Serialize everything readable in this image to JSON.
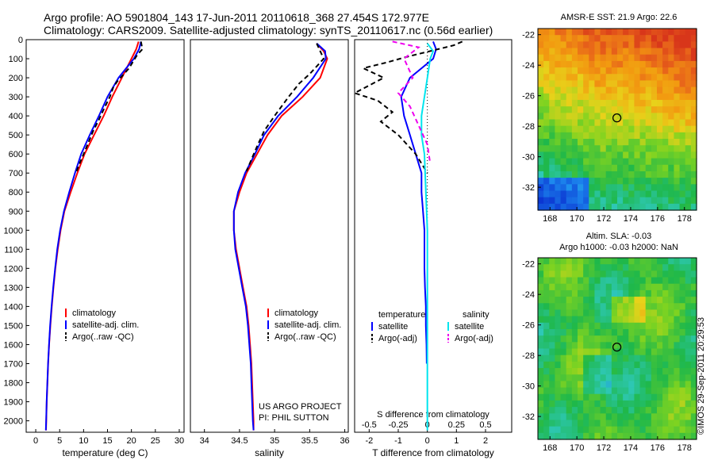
{
  "header": {
    "line1": "Argo profile: AO 5901804_143 17-Jun-2011 20110618_368 27.454S 172.977E",
    "line2": "Climatology: CARS2009. Satellite-adjusted climatology: synTS_20110617.nc (0.56d earlier)"
  },
  "colors": {
    "climatology": "#ff0000",
    "satellite": "#0000ff",
    "argo": "#000000",
    "sal_satellite": "#00e5ee",
    "sal_argo": "#ee00ee"
  },
  "chart_data": [
    {
      "type": "line",
      "id": "temperature",
      "xlabel": "temperature (deg C)",
      "ylabel": "",
      "xlim": [
        -2,
        31
      ],
      "ylim": [
        2060,
        0
      ],
      "xticks": [
        0,
        5,
        10,
        15,
        20,
        25,
        30
      ],
      "yticks": [
        0,
        100,
        200,
        300,
        400,
        500,
        600,
        700,
        800,
        900,
        1000,
        1100,
        1200,
        1300,
        1400,
        1500,
        1600,
        1700,
        1800,
        1900,
        2000
      ],
      "legend": [
        "climatology",
        "satellite-adj. clim.",
        "Argo(..raw -QC)"
      ],
      "series": [
        {
          "name": "climatology",
          "role": "climatology",
          "points": [
            [
              21.5,
              10
            ],
            [
              21,
              50
            ],
            [
              20,
              100
            ],
            [
              18,
              200
            ],
            [
              16,
              300
            ],
            [
              14.2,
              400
            ],
            [
              12.2,
              500
            ],
            [
              10.2,
              600
            ],
            [
              8.7,
              700
            ],
            [
              7.3,
              800
            ],
            [
              6,
              900
            ],
            [
              5.2,
              1000
            ],
            [
              4.6,
              1100
            ],
            [
              4.1,
              1200
            ],
            [
              3.7,
              1300
            ],
            [
              3.35,
              1400
            ],
            [
              3.05,
              1500
            ],
            [
              2.8,
              1600
            ],
            [
              2.6,
              1700
            ],
            [
              2.45,
              1800
            ],
            [
              2.3,
              1900
            ],
            [
              2.2,
              2000
            ],
            [
              2.15,
              2050
            ]
          ]
        },
        {
          "name": "satellite-adj. clim.",
          "role": "satellite",
          "points": [
            [
              22,
              10
            ],
            [
              21.6,
              50
            ],
            [
              20.5,
              100
            ],
            [
              17.3,
              200
            ],
            [
              15,
              300
            ],
            [
              13.2,
              400
            ],
            [
              11.3,
              500
            ],
            [
              9.5,
              600
            ],
            [
              8.2,
              700
            ],
            [
              7,
              800
            ],
            [
              5.9,
              900
            ],
            [
              5.1,
              1000
            ],
            [
              4.5,
              1100
            ],
            [
              4.05,
              1200
            ],
            [
              3.65,
              1300
            ],
            [
              3.3,
              1400
            ],
            [
              3,
              1500
            ],
            [
              2.78,
              1600
            ],
            [
              2.58,
              1700
            ],
            [
              2.43,
              1800
            ],
            [
              2.28,
              1900
            ],
            [
              2.18,
              2000
            ],
            [
              2.12,
              2050
            ]
          ]
        },
        {
          "name": "Argo(..raw -QC)",
          "role": "argo",
          "points": [
            [
              22,
              10
            ],
            [
              22.3,
              50
            ],
            [
              21.2,
              80
            ],
            [
              19.5,
              150
            ],
            [
              17,
              220
            ],
            [
              16.2,
              250
            ],
            [
              15.5,
              300
            ],
            [
              14.5,
              350
            ],
            [
              13.2,
              420
            ],
            [
              12,
              480
            ],
            [
              11,
              540
            ],
            [
              10,
              600
            ],
            [
              9,
              660
            ],
            [
              8.4,
              700
            ]
          ]
        }
      ]
    },
    {
      "type": "line",
      "id": "salinity",
      "xlabel": "salinity",
      "ylabel": "",
      "xlim": [
        33.8,
        36.05
      ],
      "ylim": [
        2060,
        0
      ],
      "xticks": [
        34,
        34.5,
        35,
        35.5,
        36
      ],
      "legend": [
        "climatology",
        "satellite-adj. clim.",
        "Argo(..raw -QC)"
      ],
      "annotations": [
        "US ARGO PROJECT",
        "PI: PHIL SUTTON"
      ],
      "series": [
        {
          "name": "climatology",
          "role": "climatology",
          "points": [
            [
              35.6,
              20
            ],
            [
              35.7,
              60
            ],
            [
              35.75,
              100
            ],
            [
              35.65,
              200
            ],
            [
              35.4,
              300
            ],
            [
              35.1,
              400
            ],
            [
              34.9,
              500
            ],
            [
              34.75,
              600
            ],
            [
              34.6,
              700
            ],
            [
              34.5,
              800
            ],
            [
              34.42,
              900
            ],
            [
              34.42,
              1000
            ],
            [
              34.45,
              1100
            ],
            [
              34.5,
              1200
            ],
            [
              34.55,
              1300
            ],
            [
              34.6,
              1400
            ],
            [
              34.63,
              1500
            ],
            [
              34.65,
              1600
            ],
            [
              34.67,
              1700
            ],
            [
              34.68,
              1800
            ],
            [
              34.69,
              1900
            ],
            [
              34.7,
              2000
            ],
            [
              34.7,
              2050
            ]
          ]
        },
        {
          "name": "satellite-adj. clim.",
          "role": "satellite",
          "points": [
            [
              35.6,
              20
            ],
            [
              35.72,
              60
            ],
            [
              35.73,
              100
            ],
            [
              35.55,
              200
            ],
            [
              35.32,
              300
            ],
            [
              35.05,
              400
            ],
            [
              34.85,
              500
            ],
            [
              34.72,
              600
            ],
            [
              34.58,
              700
            ],
            [
              34.48,
              800
            ],
            [
              34.42,
              900
            ],
            [
              34.42,
              1000
            ],
            [
              34.44,
              1100
            ],
            [
              34.49,
              1200
            ],
            [
              34.54,
              1300
            ],
            [
              34.59,
              1400
            ],
            [
              34.62,
              1500
            ],
            [
              34.64,
              1600
            ],
            [
              34.66,
              1700
            ],
            [
              34.67,
              1800
            ],
            [
              34.68,
              1900
            ],
            [
              34.69,
              2000
            ],
            [
              34.7,
              2050
            ]
          ]
        },
        {
          "name": "Argo(..raw -QC)",
          "role": "argo",
          "points": [
            [
              35.6,
              20
            ],
            [
              35.65,
              60
            ],
            [
              35.7,
              100
            ],
            [
              35.5,
              180
            ],
            [
              35.35,
              230
            ],
            [
              35.2,
              300
            ],
            [
              35,
              400
            ],
            [
              34.85,
              480
            ],
            [
              34.75,
              560
            ],
            [
              34.68,
              620
            ],
            [
              34.6,
              690
            ]
          ]
        }
      ]
    },
    {
      "type": "line",
      "id": "difference",
      "xlabel": "T difference from climatology",
      "top_label": "S difference from climatology",
      "xlim": [
        -2.5,
        2.9
      ],
      "ylim": [
        2060,
        0
      ],
      "xticks_t": [
        -2,
        -1,
        0,
        1,
        2
      ],
      "xticks_s": [
        {
          "label": "-0.5",
          "value": -2
        },
        {
          "label": "-0.25",
          "value": -1
        },
        {
          "label": "0",
          "value": 0
        },
        {
          "label": "0.25",
          "value": 1
        },
        {
          "label": "0.5",
          "value": 2
        }
      ],
      "legend_t": [
        "temperature",
        "satellite",
        "Argo(-adj)"
      ],
      "legend_s": [
        "salinity",
        "satellite",
        "Argo(-adj)"
      ],
      "series": [
        {
          "name": "temperature satellite",
          "role": "satellite",
          "points": [
            [
              0.2,
              10
            ],
            [
              0.3,
              50
            ],
            [
              0.2,
              100
            ],
            [
              -0.6,
              200
            ],
            [
              -0.9,
              300
            ],
            [
              -0.8,
              400
            ],
            [
              -0.6,
              500
            ],
            [
              -0.4,
              600
            ],
            [
              -0.2,
              700
            ],
            [
              -0.2,
              800
            ],
            [
              -0.15,
              900
            ],
            [
              -0.1,
              1000
            ],
            [
              -0.1,
              1100
            ],
            [
              -0.1,
              1200
            ],
            [
              -0.08,
              1300
            ],
            [
              -0.05,
              1400
            ],
            [
              -0.05,
              1500
            ],
            [
              -0.03,
              1600
            ],
            [
              -0.02,
              1700
            ]
          ]
        },
        {
          "name": "temperature Argo(-adj)",
          "role": "argo",
          "points": [
            [
              1.2,
              10
            ],
            [
              0.9,
              30
            ],
            [
              -0.7,
              90
            ],
            [
              -1.4,
              120
            ],
            [
              -2.2,
              150
            ],
            [
              -1.5,
              200
            ],
            [
              -2.5,
              280
            ],
            [
              -1.7,
              320
            ],
            [
              -1.2,
              380
            ],
            [
              -1.6,
              430
            ],
            [
              -1,
              500
            ],
            [
              -0.4,
              600
            ],
            [
              0,
              700
            ]
          ]
        },
        {
          "name": "salinity satellite",
          "role": "sal_satellite",
          "points": [
            [
              0,
              20
            ],
            [
              0.2,
              60
            ],
            [
              0.1,
              100
            ],
            [
              0,
              200
            ],
            [
              -0.1,
              300
            ],
            [
              -0.2,
              400
            ],
            [
              -0.2,
              500
            ],
            [
              -0.1,
              600
            ],
            [
              -0.05,
              800
            ],
            [
              0,
              1000
            ],
            [
              0,
              1200
            ],
            [
              0,
              1400
            ],
            [
              0,
              1600
            ],
            [
              0,
              1800
            ],
            [
              0,
              2050
            ]
          ]
        },
        {
          "name": "salinity Argo(-adj)",
          "role": "sal_argo",
          "points": [
            [
              -1.2,
              10
            ],
            [
              -0.3,
              40
            ],
            [
              -0.8,
              100
            ],
            [
              -0.5,
              200
            ],
            [
              -1,
              280
            ],
            [
              -0.6,
              350
            ],
            [
              -0.3,
              450
            ],
            [
              0,
              550
            ],
            [
              0.1,
              650
            ]
          ]
        }
      ]
    },
    {
      "type": "heatmap",
      "id": "sst_map",
      "title": "AMSR-E SST: 21.9 Argo: 22.6",
      "xlim": [
        167.1,
        178.9
      ],
      "ylim": [
        -33.5,
        -21.6
      ],
      "xticks": [
        168,
        170,
        172,
        174,
        176,
        178
      ],
      "yticks": [
        -22,
        -24,
        -26,
        -28,
        -30,
        -32
      ],
      "marker": {
        "lon": 172.977,
        "lat": -27.454
      }
    },
    {
      "type": "heatmap",
      "id": "sla_map",
      "title_line1": "Altim. SLA: -0.03",
      "title_line2": "Argo h1000: -0.03 h2000: NaN",
      "xlim": [
        167.1,
        178.9
      ],
      "ylim": [
        -33.5,
        -21.6
      ],
      "xticks": [
        168,
        170,
        172,
        174,
        176,
        178
      ],
      "yticks": [
        -22,
        -24,
        -26,
        -28,
        -30,
        -32
      ],
      "marker": {
        "lon": 172.977,
        "lat": -27.454
      }
    }
  ],
  "footer": "©IMOS 29-Sep-2011 20:29:53"
}
